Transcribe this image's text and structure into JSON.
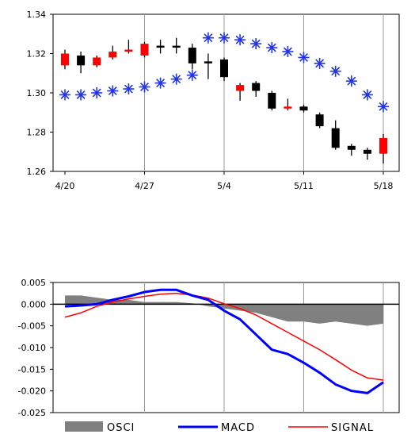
{
  "chart_data": [
    {
      "type": "candlestick",
      "title": "",
      "xlabel": "",
      "ylabel": "",
      "ylim": [
        1.26,
        1.34
      ],
      "y_ticks": [
        "1.34",
        "1.32",
        "1.30",
        "1.28",
        "1.26"
      ],
      "y_tick_values": [
        1.34,
        1.32,
        1.3,
        1.28,
        1.26
      ],
      "x_ticks": [
        "4/20",
        "4/27",
        "5/4",
        "5/11",
        "5/18"
      ],
      "x_tick_index": [
        0,
        5,
        10,
        15,
        20
      ],
      "grid": "vertical",
      "candles": [
        {
          "o": 1.314,
          "h": 1.322,
          "l": 1.312,
          "c": 1.32
        },
        {
          "o": 1.319,
          "h": 1.321,
          "l": 1.31,
          "c": 1.314
        },
        {
          "o": 1.314,
          "h": 1.319,
          "l": 1.313,
          "c": 1.318
        },
        {
          "o": 1.318,
          "h": 1.324,
          "l": 1.317,
          "c": 1.321
        },
        {
          "o": 1.321,
          "h": 1.327,
          "l": 1.32,
          "c": 1.322
        },
        {
          "o": 1.319,
          "h": 1.326,
          "l": 1.318,
          "c": 1.325
        },
        {
          "o": 1.324,
          "h": 1.327,
          "l": 1.32,
          "c": 1.323
        },
        {
          "o": 1.324,
          "h": 1.328,
          "l": 1.32,
          "c": 1.323
        },
        {
          "o": 1.323,
          "h": 1.325,
          "l": 1.312,
          "c": 1.315
        },
        {
          "o": 1.316,
          "h": 1.32,
          "l": 1.307,
          "c": 1.315
        },
        {
          "o": 1.317,
          "h": 1.318,
          "l": 1.306,
          "c": 1.308
        },
        {
          "o": 1.301,
          "h": 1.305,
          "l": 1.296,
          "c": 1.304
        },
        {
          "o": 1.305,
          "h": 1.306,
          "l": 1.298,
          "c": 1.301
        },
        {
          "o": 1.3,
          "h": 1.301,
          "l": 1.291,
          "c": 1.292
        },
        {
          "o": 1.292,
          "h": 1.297,
          "l": 1.291,
          "c": 1.293
        },
        {
          "o": 1.293,
          "h": 1.294,
          "l": 1.29,
          "c": 1.291
        },
        {
          "o": 1.289,
          "h": 1.29,
          "l": 1.282,
          "c": 1.283
        },
        {
          "o": 1.282,
          "h": 1.286,
          "l": 1.271,
          "c": 1.272
        },
        {
          "o": 1.273,
          "h": 1.274,
          "l": 1.268,
          "c": 1.271
        },
        {
          "o": 1.271,
          "h": 1.272,
          "l": 1.266,
          "c": 1.269
        },
        {
          "o": 1.269,
          "h": 1.279,
          "l": 1.264,
          "c": 1.277
        }
      ],
      "markers_x": [
        -1,
        0,
        1,
        2,
        3,
        4,
        5,
        6,
        7,
        8,
        9,
        10,
        11,
        12,
        13,
        14,
        15,
        16,
        17,
        18,
        19,
        20
      ],
      "markers_y": [
        1.299,
        1.299,
        1.299,
        1.3,
        1.301,
        1.302,
        1.303,
        1.305,
        1.307,
        1.309,
        1.328,
        1.328,
        1.327,
        1.325,
        1.323,
        1.321,
        1.318,
        1.315,
        1.311,
        1.306,
        1.299,
        1.293
      ],
      "colors": {
        "up": "#ff0000",
        "down": "#000000",
        "marker": "#2233ee",
        "wick": "#000000"
      }
    },
    {
      "type": "line",
      "title": "",
      "xlabel": "",
      "ylabel": "",
      "ylim": [
        -0.025,
        0.005
      ],
      "y_ticks": [
        "0.005",
        "0.000",
        "-0.005",
        "-0.010",
        "-0.015",
        "-0.020",
        "-0.025"
      ],
      "y_tick_values": [
        0.005,
        0.0,
        -0.005,
        -0.01,
        -0.015,
        -0.02,
        -0.025
      ],
      "grid": "vertical",
      "x": [
        0,
        1,
        2,
        3,
        4,
        5,
        6,
        7,
        8,
        9,
        10,
        11,
        12,
        13,
        14,
        15,
        16,
        17,
        18,
        19,
        20
      ],
      "series": [
        {
          "name": "OSCI",
          "kind": "area",
          "color": "#808080",
          "values": [
            0.002,
            0.002,
            0.0015,
            0.001,
            0.001,
            0.0005,
            0.0005,
            0.0005,
            0.0002,
            -0.0005,
            -0.001,
            -0.0015,
            -0.002,
            -0.003,
            -0.004,
            -0.004,
            -0.0045,
            -0.004,
            -0.0045,
            -0.005,
            -0.0045
          ]
        },
        {
          "name": "MACD",
          "kind": "line",
          "color": "#0000ff",
          "values": [
            -0.0005,
            -0.0003,
            0.0,
            0.001,
            0.0018,
            0.0028,
            0.0033,
            0.0033,
            0.002,
            0.001,
            -0.0015,
            -0.0035,
            -0.007,
            -0.0105,
            -0.0115,
            -0.0135,
            -0.0158,
            -0.0185,
            -0.02,
            -0.0205,
            -0.018
          ]
        },
        {
          "name": "SIGNAL",
          "kind": "line",
          "color": "#ff0000",
          "values": [
            -0.003,
            -0.002,
            -0.0005,
            0.0005,
            0.0012,
            0.0018,
            0.0023,
            0.0025,
            0.0021,
            0.0014,
            0.0001,
            -0.001,
            -0.0025,
            -0.0045,
            -0.0065,
            -0.0085,
            -0.0105,
            -0.0128,
            -0.0152,
            -0.017,
            -0.0175
          ]
        }
      ],
      "legend_position": "bottom"
    }
  ]
}
